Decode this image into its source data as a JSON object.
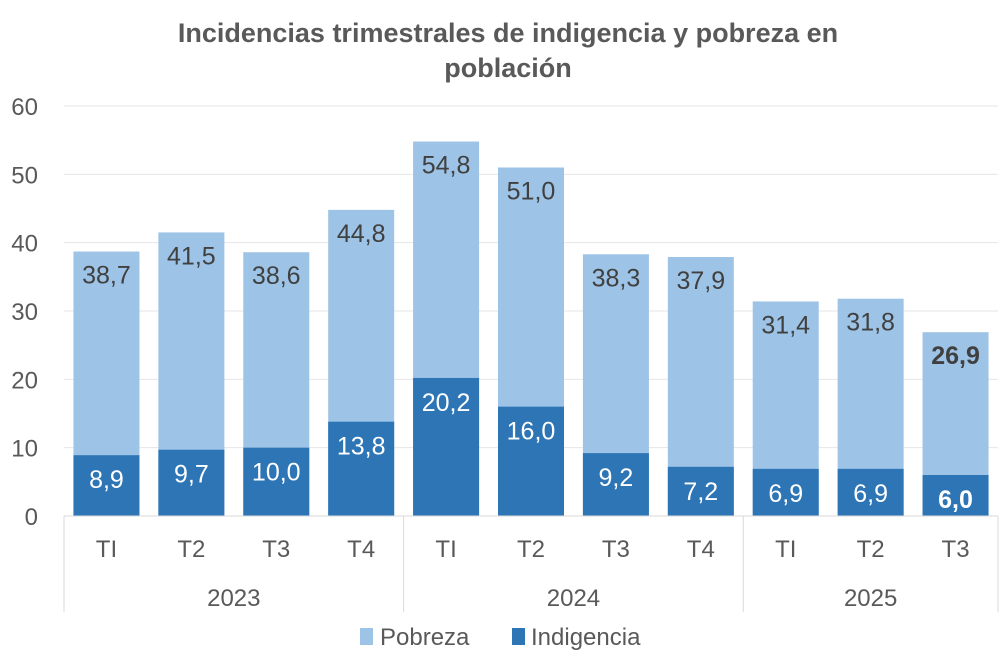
{
  "chart_data": {
    "type": "bar",
    "stacked": false,
    "overlapping": true,
    "title": "Incidencias trimestrales de indigencia y pobreza en población",
    "title_lines": [
      "Incidencias trimestrales de indigencia y pobreza en",
      "población"
    ],
    "xlabel": "",
    "ylabel": "",
    "ylim": [
      0,
      60
    ],
    "yticks": [
      0,
      10,
      20,
      30,
      40,
      50,
      60
    ],
    "grid": true,
    "categories": [
      "T1",
      "T2",
      "T3",
      "T4",
      "T1",
      "T2",
      "T3",
      "T4",
      "T1",
      "T2",
      "T3"
    ],
    "category_labels": [
      "TI",
      "T2",
      "T3",
      "T4",
      "TI",
      "T2",
      "T3",
      "T4",
      "TI",
      "T2",
      "T3"
    ],
    "groups": [
      {
        "label": "2023",
        "count": 4
      },
      {
        "label": "2024",
        "count": 4
      },
      {
        "label": "2025",
        "count": 3
      }
    ],
    "series": [
      {
        "name": "Pobreza",
        "color": "#9dc3e6",
        "values": [
          38.7,
          41.5,
          38.6,
          44.8,
          54.8,
          51.0,
          38.3,
          37.9,
          31.4,
          31.8,
          26.9
        ],
        "labels": [
          "38,7",
          "41,5",
          "38,6",
          "44,8",
          "54,8",
          "51,0",
          "38,3",
          "37,9",
          "31,4",
          "31,8",
          "26,9"
        ]
      },
      {
        "name": "Indigencia",
        "color": "#2e75b6",
        "values": [
          8.9,
          9.7,
          10.0,
          13.8,
          20.2,
          16.0,
          9.2,
          7.2,
          6.9,
          6.9,
          6.0
        ],
        "labels": [
          "8,9",
          "9,7",
          "10,0",
          "13,8",
          "20,2",
          "16,0",
          "9,2",
          "7,2",
          "6,9",
          "6,9",
          "6,0"
        ]
      }
    ],
    "highlight_last": true,
    "legend": {
      "position": "bottom",
      "entries": [
        "Pobreza",
        "Indigencia"
      ]
    }
  }
}
